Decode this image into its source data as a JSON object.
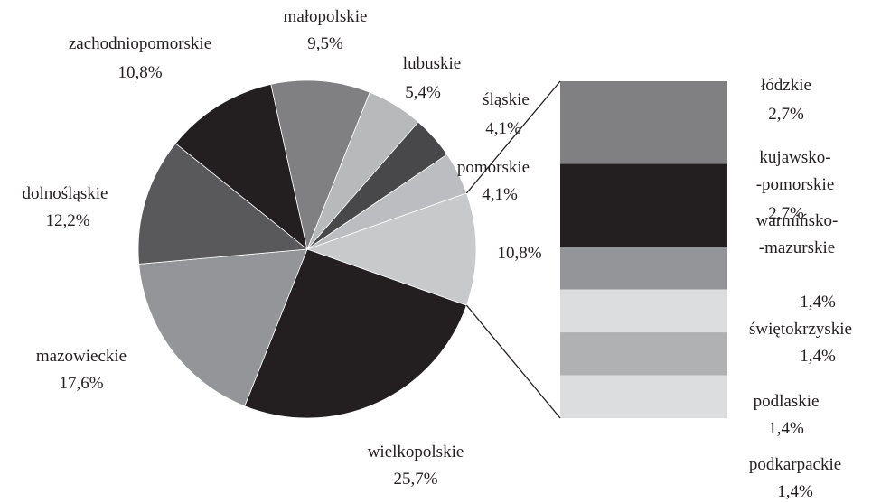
{
  "chart_data": {
    "type": "pie",
    "categories": [
      "wielkopolskie",
      "mazowieckie",
      "dolnośląskie",
      "zachodniopomorskie",
      "małopolskie",
      "lubuskie",
      "śląskie",
      "pomorskie",
      null
    ],
    "values": [
      25.7,
      17.6,
      12.2,
      10.8,
      9.5,
      5.4,
      4.1,
      4.1,
      10.8
    ],
    "value_labels": [
      "25,7%",
      "17,6%",
      "12,2%",
      "10,8%",
      "9,5%",
      "5,4%",
      "4,1%",
      "4,1%",
      "10,8%"
    ],
    "colors": [
      "#231f20",
      "#939598",
      "#59595b",
      "#231f20",
      "#808083",
      "#b8b9bb",
      "#48484a",
      "#bcbdc0",
      "#c8c9cb"
    ],
    "bar": {
      "categories": [
        "łódzkie",
        "kujawsko-\n-pomorskie",
        "warmińsko-\n-mazurskie",
        "świętokrzyskie",
        "podlaskie",
        "podkarpackie"
      ],
      "values": [
        2.7,
        2.7,
        1.4,
        1.4,
        1.4,
        1.4
      ],
      "value_labels": [
        "2,7%",
        "2,7%",
        "1,4%",
        "1,4%",
        "1,4%",
        "1,4%"
      ],
      "colors": [
        "#808083",
        "#231f20",
        "#939598",
        "#dcdddf",
        "#b0b1b3",
        "#dcdddf"
      ]
    }
  }
}
